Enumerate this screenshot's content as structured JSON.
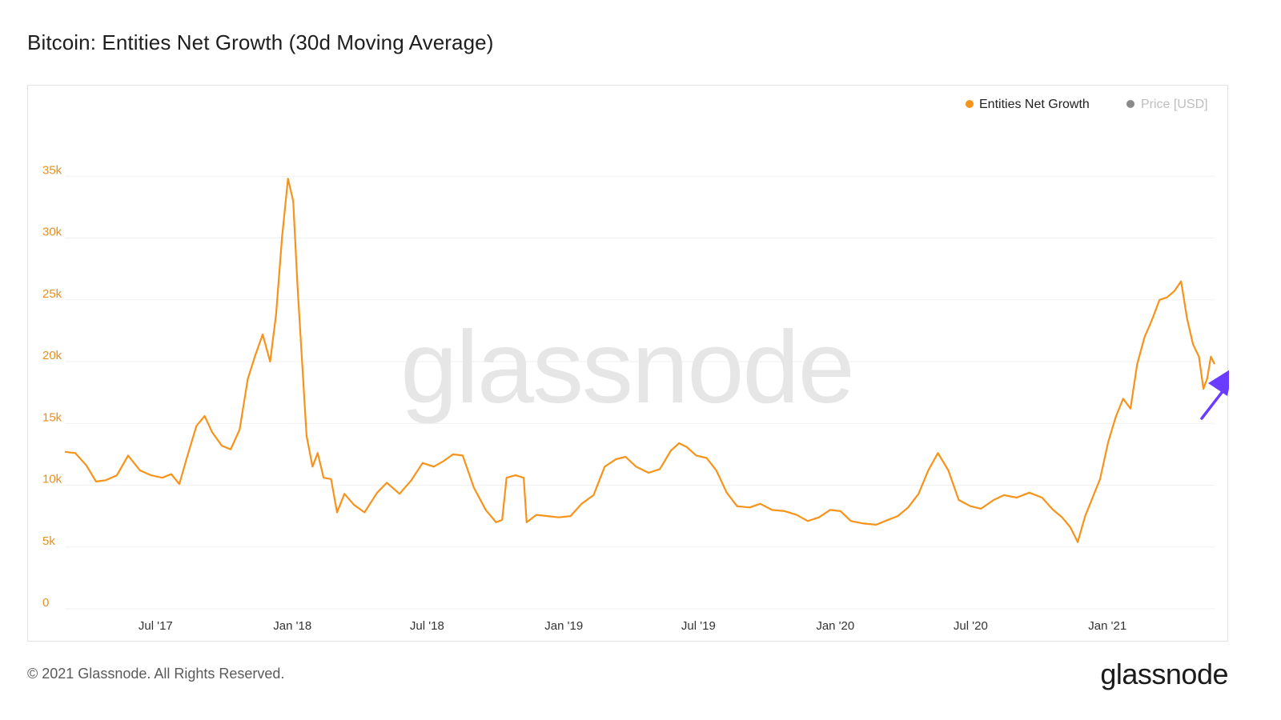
{
  "title": "Bitcoin: Entities Net Growth (30d Moving Average)",
  "footer": {
    "copyright": "© 2021 Glassnode. All Rights Reserved.",
    "brand": "glassnode"
  },
  "watermark": "glassnode",
  "colors": {
    "series": "#f7931a",
    "ytick": "#e8901c",
    "grid": "#efefef",
    "legend_inactive": "#bdbdbd",
    "legend_inactive_dot": "#8a8a8a",
    "annotation_arrow": "#6a3cff"
  },
  "chart_data": {
    "type": "line",
    "title": "Bitcoin: Entities Net Growth (30d Moving Average)",
    "legend": [
      {
        "name": "Entities Net Growth",
        "active": true
      },
      {
        "name": "Price [USD]",
        "active": false
      }
    ],
    "legend_position": "top-right",
    "grid": true,
    "ylim": [
      0,
      40000
    ],
    "y_ticks": [
      0,
      5000,
      10000,
      15000,
      20000,
      25000,
      30000,
      35000
    ],
    "y_tick_labels": [
      "0",
      "5k",
      "10k",
      "15k",
      "20k",
      "25k",
      "30k",
      "35k"
    ],
    "xlim": [
      "2017-03-01",
      "2021-05-25"
    ],
    "x_ticks": [
      "2017-07-01",
      "2018-01-01",
      "2018-07-01",
      "2019-01-01",
      "2019-07-01",
      "2020-01-01",
      "2020-07-01",
      "2021-01-01"
    ],
    "x_tick_labels": [
      "Jul '17",
      "Jan '18",
      "Jul '18",
      "Jan '19",
      "Jul '19",
      "Jan '20",
      "Jul '20",
      "Jan '21"
    ],
    "annotation": "arrow pointing to latest value",
    "series": [
      {
        "name": "Entities Net Growth",
        "points": [
          [
            "2017-03-01",
            12700
          ],
          [
            "2017-03-15",
            12600
          ],
          [
            "2017-03-30",
            11600
          ],
          [
            "2017-04-12",
            10300
          ],
          [
            "2017-04-25",
            10400
          ],
          [
            "2017-05-10",
            10800
          ],
          [
            "2017-05-25",
            12400
          ],
          [
            "2017-06-10",
            11200
          ],
          [
            "2017-06-25",
            10800
          ],
          [
            "2017-07-10",
            10600
          ],
          [
            "2017-07-22",
            10900
          ],
          [
            "2017-08-02",
            10100
          ],
          [
            "2017-08-12",
            12200
          ],
          [
            "2017-08-25",
            14800
          ],
          [
            "2017-09-05",
            15600
          ],
          [
            "2017-09-15",
            14300
          ],
          [
            "2017-09-28",
            13200
          ],
          [
            "2017-10-10",
            12900
          ],
          [
            "2017-10-22",
            14500
          ],
          [
            "2017-11-02",
            18600
          ],
          [
            "2017-11-12",
            20500
          ],
          [
            "2017-11-22",
            22200
          ],
          [
            "2017-12-02",
            20000
          ],
          [
            "2017-12-10",
            23800
          ],
          [
            "2017-12-18",
            30000
          ],
          [
            "2017-12-26",
            34800
          ],
          [
            "2018-01-02",
            33000
          ],
          [
            "2018-01-08",
            26000
          ],
          [
            "2018-01-14",
            20000
          ],
          [
            "2018-01-20",
            14000
          ],
          [
            "2018-01-28",
            11500
          ],
          [
            "2018-02-04",
            12600
          ],
          [
            "2018-02-12",
            10600
          ],
          [
            "2018-02-22",
            10500
          ],
          [
            "2018-03-02",
            7800
          ],
          [
            "2018-03-12",
            9300
          ],
          [
            "2018-03-25",
            8400
          ],
          [
            "2018-04-08",
            7800
          ],
          [
            "2018-04-25",
            9400
          ],
          [
            "2018-05-08",
            10200
          ],
          [
            "2018-05-25",
            9300
          ],
          [
            "2018-06-10",
            10400
          ],
          [
            "2018-06-25",
            11800
          ],
          [
            "2018-07-10",
            11500
          ],
          [
            "2018-07-22",
            11900
          ],
          [
            "2018-08-05",
            12500
          ],
          [
            "2018-08-18",
            12400
          ],
          [
            "2018-09-02",
            9800
          ],
          [
            "2018-09-18",
            8000
          ],
          [
            "2018-10-02",
            7000
          ],
          [
            "2018-10-10",
            7200
          ],
          [
            "2018-10-16",
            10600
          ],
          [
            "2018-10-28",
            10800
          ],
          [
            "2018-11-08",
            10600
          ],
          [
            "2018-11-12",
            7000
          ],
          [
            "2018-11-25",
            7600
          ],
          [
            "2018-12-10",
            7500
          ],
          [
            "2018-12-25",
            7400
          ],
          [
            "2019-01-10",
            7500
          ],
          [
            "2019-01-25",
            8500
          ],
          [
            "2019-02-10",
            9200
          ],
          [
            "2019-02-25",
            11500
          ],
          [
            "2019-03-12",
            12100
          ],
          [
            "2019-03-25",
            12300
          ],
          [
            "2019-04-08",
            11500
          ],
          [
            "2019-04-25",
            11000
          ],
          [
            "2019-05-10",
            11300
          ],
          [
            "2019-05-25",
            12800
          ],
          [
            "2019-06-05",
            13400
          ],
          [
            "2019-06-15",
            13100
          ],
          [
            "2019-06-28",
            12400
          ],
          [
            "2019-07-12",
            12200
          ],
          [
            "2019-07-25",
            11200
          ],
          [
            "2019-08-08",
            9400
          ],
          [
            "2019-08-22",
            8300
          ],
          [
            "2019-09-08",
            8200
          ],
          [
            "2019-09-22",
            8500
          ],
          [
            "2019-10-08",
            8000
          ],
          [
            "2019-10-25",
            7900
          ],
          [
            "2019-11-10",
            7600
          ],
          [
            "2019-11-25",
            7100
          ],
          [
            "2019-12-10",
            7400
          ],
          [
            "2019-12-25",
            8000
          ],
          [
            "2020-01-08",
            7900
          ],
          [
            "2020-01-22",
            7100
          ],
          [
            "2020-02-08",
            6900
          ],
          [
            "2020-02-25",
            6800
          ],
          [
            "2020-03-12",
            7200
          ],
          [
            "2020-03-25",
            7500
          ],
          [
            "2020-04-08",
            8200
          ],
          [
            "2020-04-22",
            9300
          ],
          [
            "2020-05-05",
            11200
          ],
          [
            "2020-05-18",
            12600
          ],
          [
            "2020-06-01",
            11200
          ],
          [
            "2020-06-15",
            8800
          ],
          [
            "2020-07-01",
            8300
          ],
          [
            "2020-07-15",
            8100
          ],
          [
            "2020-08-01",
            8800
          ],
          [
            "2020-08-15",
            9200
          ],
          [
            "2020-09-01",
            9000
          ],
          [
            "2020-09-18",
            9400
          ],
          [
            "2020-10-05",
            9000
          ],
          [
            "2020-10-20",
            8000
          ],
          [
            "2020-11-01",
            7400
          ],
          [
            "2020-11-12",
            6600
          ],
          [
            "2020-11-22",
            5400
          ],
          [
            "2020-12-02",
            7500
          ],
          [
            "2020-12-12",
            9000
          ],
          [
            "2020-12-22",
            10500
          ],
          [
            "2021-01-02",
            13500
          ],
          [
            "2021-01-12",
            15500
          ],
          [
            "2021-01-22",
            17000
          ],
          [
            "2021-02-01",
            16200
          ],
          [
            "2021-02-10",
            19800
          ],
          [
            "2021-02-20",
            22000
          ],
          [
            "2021-03-02",
            23400
          ],
          [
            "2021-03-12",
            25000
          ],
          [
            "2021-03-22",
            25200
          ],
          [
            "2021-04-01",
            25700
          ],
          [
            "2021-04-10",
            26500
          ],
          [
            "2021-04-18",
            23500
          ],
          [
            "2021-04-26",
            21400
          ],
          [
            "2021-05-04",
            20400
          ],
          [
            "2021-05-10",
            17800
          ],
          [
            "2021-05-15",
            18600
          ],
          [
            "2021-05-20",
            20400
          ],
          [
            "2021-05-25",
            19800
          ]
        ]
      }
    ]
  }
}
